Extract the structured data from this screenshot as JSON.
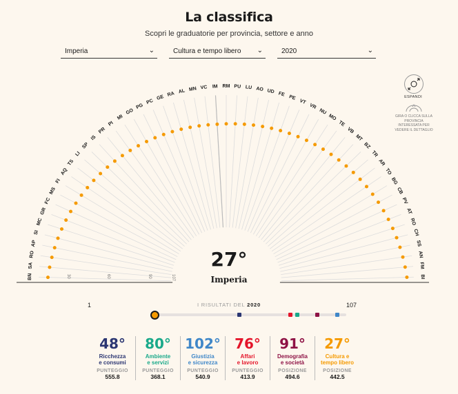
{
  "header": {
    "title": "La classifica",
    "subtitle": "Scopri le graduatorie per provincia, settore e anno"
  },
  "filters": [
    {
      "value": "Imperia"
    },
    {
      "value": "Cultura e tempo libero"
    },
    {
      "value": "2020"
    }
  ],
  "arc": {
    "provinces": [
      "BN",
      "SA",
      "RO",
      "AP",
      "SI",
      "MC",
      "GR",
      "FC",
      "MS",
      "FI",
      "AQ",
      "TS",
      "LI",
      "SP",
      "IS",
      "PR",
      "PI",
      "MI",
      "GO",
      "PG",
      "PC",
      "GE",
      "RA",
      "AL",
      "MN",
      "VC",
      "IM",
      "RM",
      "PU",
      "LU",
      "AO",
      "UD",
      "FE",
      "PE",
      "VT",
      "VR",
      "NU",
      "MO",
      "TE",
      "VB",
      "MT",
      "BZ",
      "TR",
      "AR",
      "TO",
      "BG",
      "CB",
      "PV",
      "AT",
      "RO",
      "CH",
      "SS",
      "AN",
      "FM",
      "BI"
    ],
    "highlighted": "IM",
    "highlight_color": "#f59a00",
    "line_color": "#dcdcdc",
    "scale_labels": [
      "1",
      "30",
      "60",
      "90",
      "107"
    ]
  },
  "controls": {
    "expand_label": "ESPANDI",
    "expand_icon": "expand-arrows-icon",
    "hint_icon": "rotate-hand-icon",
    "hint": "GIRA O CLICCA SULLA PROVINCIA INTERESSATA PER VEDERE IL DETTAGLIO"
  },
  "selected": {
    "rank": "27°",
    "name": "Imperia"
  },
  "timeline": {
    "min": "1",
    "max": "107",
    "label": "I RISULTATI DEL",
    "year": "2020",
    "markers": [
      {
        "rank": 27,
        "color": "#f59a00",
        "current": true
      },
      {
        "rank": 48,
        "color": "#2b3672"
      },
      {
        "rank": 76,
        "color": "#e4152a"
      },
      {
        "rank": 80,
        "color": "#1aa98a"
      },
      {
        "rank": 91,
        "color": "#8e1245"
      },
      {
        "rank": 102,
        "color": "#3f87c8"
      }
    ]
  },
  "categories": [
    {
      "rank": "48°",
      "label1": "Ricchezza",
      "label2": "e consumi",
      "metric": "PUNTEGGIO",
      "value": "555.8",
      "color": "#2b3672"
    },
    {
      "rank": "80°",
      "label1": "Ambiente",
      "label2": "e servizi",
      "metric": "PUNTEGGIO",
      "value": "368.1",
      "color": "#1aa98a"
    },
    {
      "rank": "102°",
      "label1": "Giustizia",
      "label2": "e sicurezza",
      "metric": "PUNTEGGIO",
      "value": "540.9",
      "color": "#3f87c8"
    },
    {
      "rank": "76°",
      "label1": "Affari",
      "label2": "e lavoro",
      "metric": "PUNTEGGIO",
      "value": "413.9",
      "color": "#e4152a"
    },
    {
      "rank": "91°",
      "label1": "Demografia",
      "label2": "e società",
      "metric": "POSIZIONE",
      "value": "494.6",
      "color": "#8e1245"
    },
    {
      "rank": "27°",
      "label1": "Cultura e",
      "label2": "tempo libero",
      "metric": "POSIZIONE",
      "value": "442.5",
      "color": "#f59a00"
    }
  ]
}
